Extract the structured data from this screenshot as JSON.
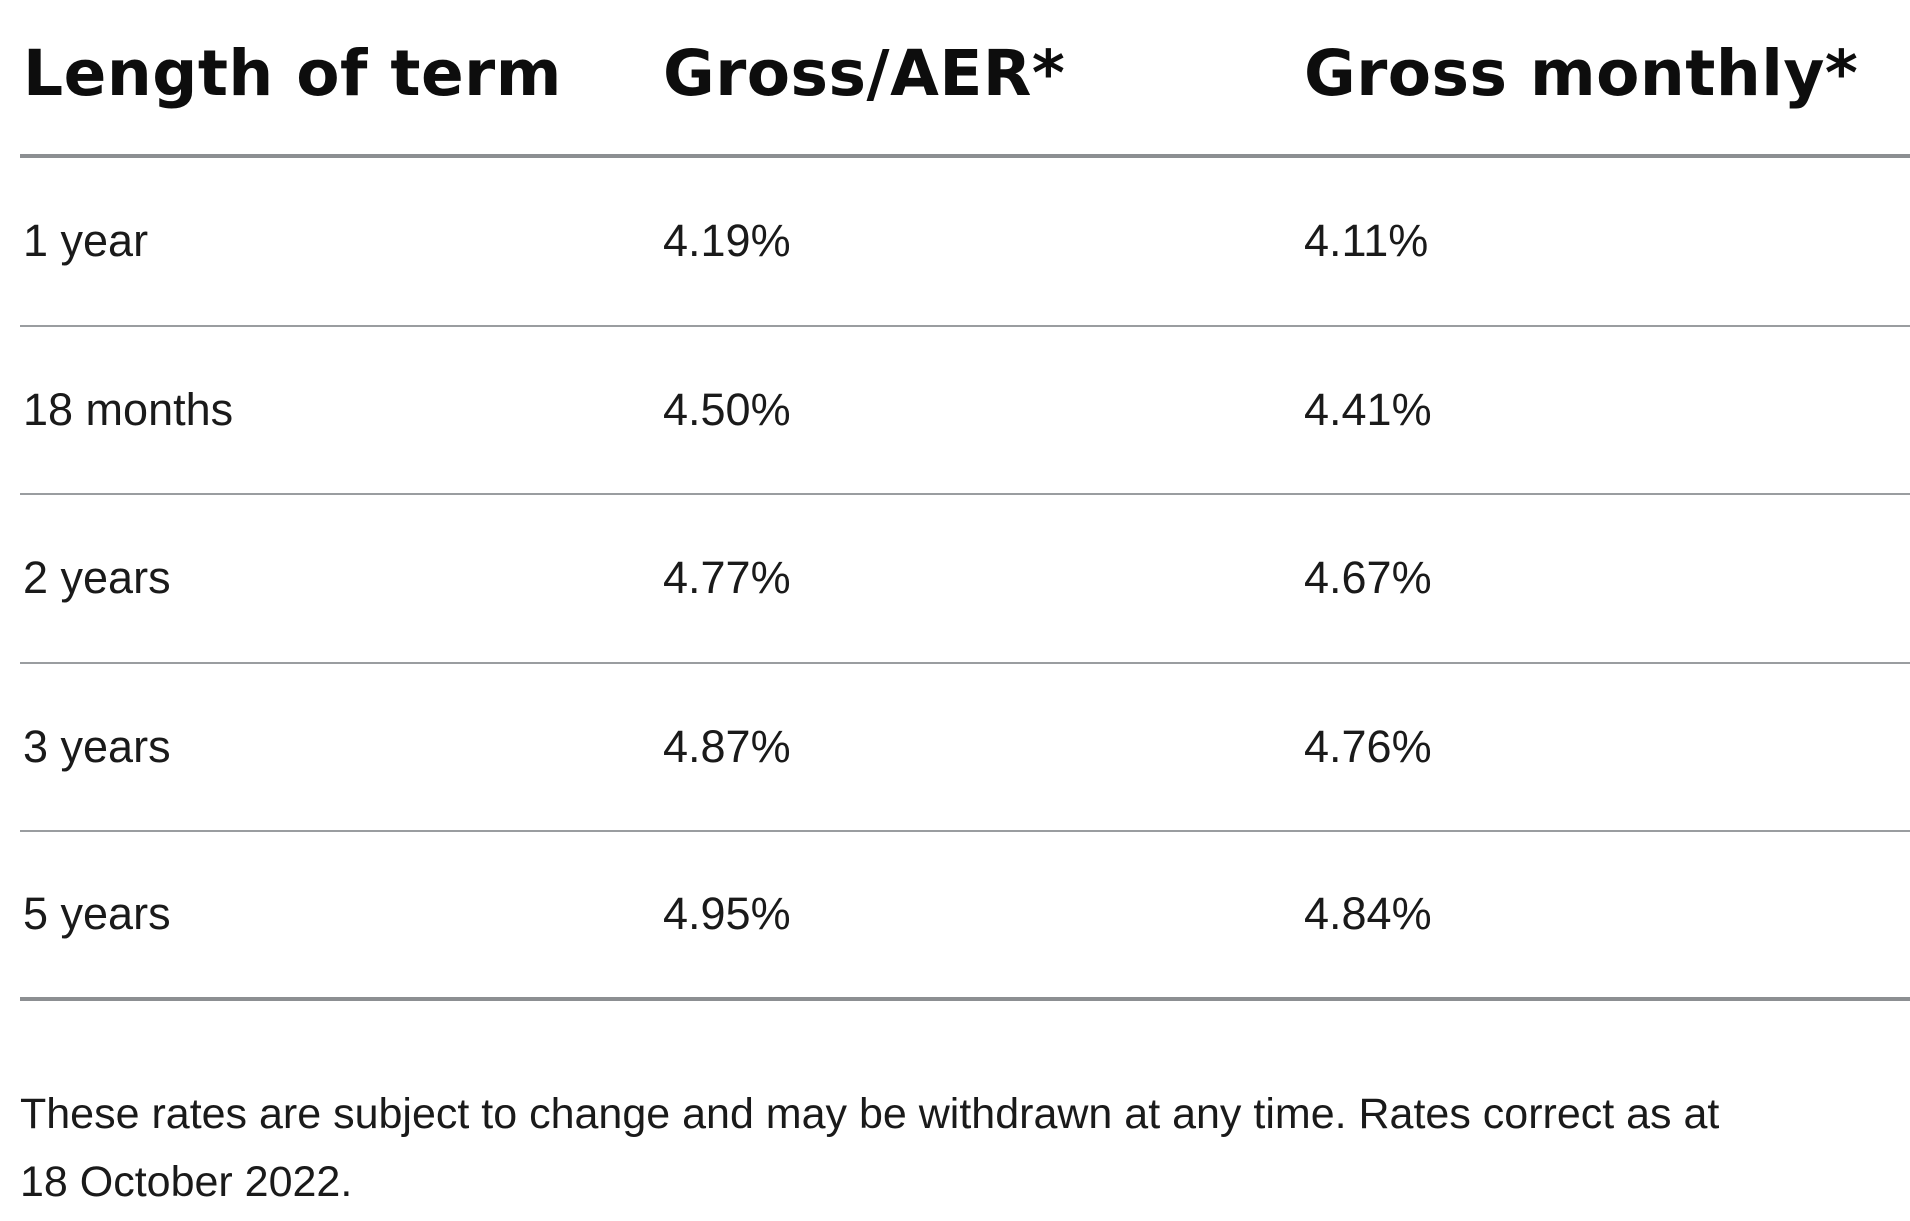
{
  "table": {
    "headers": [
      "Length of term",
      "Gross/AER*",
      "Gross monthly*"
    ],
    "rows": [
      [
        "1 year",
        "4.19%",
        "4.11%"
      ],
      [
        "18 months",
        "4.50%",
        "4.41%"
      ],
      [
        "2 years",
        "4.77%",
        "4.67%"
      ],
      [
        "3 years",
        "4.87%",
        "4.76%"
      ],
      [
        "5 years",
        "4.95%",
        "4.84%"
      ]
    ]
  },
  "footnote": {
    "line1": "These rates are subject to change and may be withdrawn at any time. Rates correct as at",
    "line2": "18 October 2022."
  }
}
